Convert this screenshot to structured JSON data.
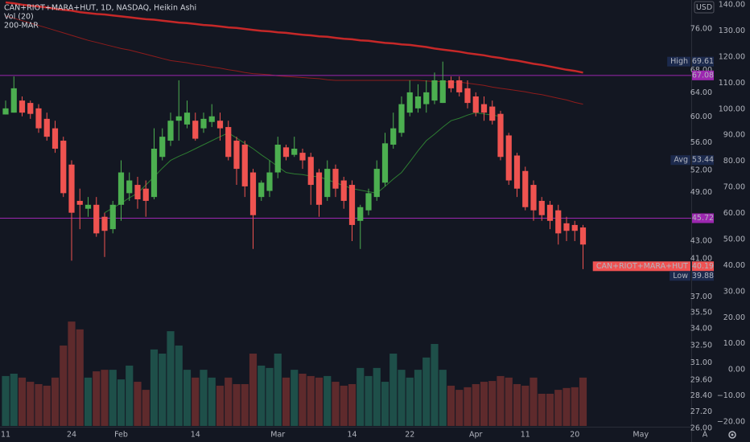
{
  "chart_data": {
    "type": "candlestick",
    "title": "CAN+RIOT+MARA+HUT, 1D, NASDAQ, Heikin Ashi",
    "currency": "USD",
    "buttons": [
      "A"
    ],
    "categories": [
      "11",
      null,
      null,
      null,
      null,
      null,
      null,
      null,
      "24",
      null,
      null,
      null,
      null,
      null,
      "Feb",
      null,
      null,
      null,
      null,
      null,
      null,
      null,
      null,
      "14",
      null,
      null,
      null,
      null,
      null,
      null,
      null,
      null,
      null,
      "Mar",
      null,
      null,
      null,
      null,
      null,
      null,
      null,
      null,
      "14",
      null,
      null,
      null,
      null,
      null,
      null,
      "22",
      null,
      null,
      null,
      null,
      null,
      null,
      null,
      "Apr",
      null,
      null,
      null,
      null,
      null,
      "11",
      null,
      null,
      null,
      null,
      null,
      "20",
      null,
      null,
      null,
      null,
      null,
      null,
      null,
      "May"
    ],
    "open": [
      60.4,
      60.7,
      62.7,
      62.3,
      61.4,
      59.7,
      58.2,
      56.3,
      52.8,
      47.9,
      46.9,
      47.4,
      45.9,
      44.4,
      47.4,
      48.9,
      50.0,
      49.5,
      48.4,
      53.9,
      56.3,
      59.4,
      58.8,
      59.4,
      58.2,
      59.2,
      59.4,
      58.4,
      56.3,
      55.7,
      51.7,
      48.4,
      49.2,
      51.7,
      55.3,
      54.2,
      54.5,
      53.9,
      51.7,
      48.4,
      52.2,
      50.6,
      50.0,
      45.4,
      46.7,
      48.4,
      50.3,
      55.7,
      57.5,
      60.7,
      61.4,
      62.1,
      62.7,
      62.3,
      66.2,
      66.2,
      64.8,
      63.4,
      62.1,
      61.7,
      60.5,
      57.1,
      54.1,
      51.9,
      50.0,
      47.9,
      47.4,
      46.7,
      45.1,
      44.9,
      44.6,
      null,
      null,
      null,
      null,
      null,
      null,
      null
    ],
    "high": [
      62.7,
      66.9,
      63.4,
      62.7,
      62.1,
      60.7,
      59.4,
      56.9,
      53.4,
      49.5,
      48.4,
      48.4,
      46.4,
      47.9,
      53.4,
      51.7,
      51.1,
      50.6,
      58.2,
      58.2,
      60.7,
      66.2,
      62.7,
      60.7,
      60.7,
      62.1,
      60.7,
      59.4,
      56.9,
      56.3,
      52.2,
      50.6,
      53.4,
      56.9,
      55.7,
      56.9,
      55.1,
      54.5,
      52.2,
      53.4,
      52.8,
      51.1,
      50.6,
      47.4,
      49.5,
      53.4,
      57.5,
      60.7,
      63.4,
      66.2,
      65.5,
      66.2,
      67.6,
      69.61,
      66.9,
      66.9,
      66.2,
      64.1,
      63.4,
      62.7,
      61.0,
      57.5,
      54.5,
      52.5,
      50.6,
      48.4,
      47.9,
      47.4,
      45.9,
      45.4,
      44.9,
      null,
      null,
      null,
      null,
      null,
      null,
      null
    ],
    "low": [
      60.4,
      60.7,
      60.1,
      59.7,
      57.5,
      56.3,
      54.5,
      48.4,
      40.8,
      44.4,
      45.9,
      43.5,
      41.2,
      43.9,
      45.4,
      47.9,
      46.9,
      45.9,
      48.1,
      53.4,
      55.5,
      56.3,
      58.2,
      56.3,
      57.5,
      58.4,
      56.3,
      53.4,
      50.0,
      48.4,
      42.1,
      47.9,
      48.4,
      50.9,
      53.4,
      53.9,
      52.2,
      47.4,
      45.9,
      47.9,
      48.4,
      46.9,
      43.0,
      42.1,
      46.1,
      47.9,
      49.8,
      55.1,
      56.9,
      60.1,
      60.7,
      60.7,
      62.1,
      62.3,
      64.1,
      63.4,
      61.4,
      60.1,
      59.4,
      58.8,
      53.4,
      50.0,
      48.4,
      46.7,
      45.4,
      45.4,
      44.4,
      42.6,
      43.0,
      43.0,
      39.88,
      null,
      null,
      null,
      null,
      null,
      null,
      null
    ],
    "close": [
      61.4,
      64.8,
      60.7,
      60.5,
      58.2,
      56.9,
      55.1,
      48.9,
      46.4,
      47.4,
      47.4,
      43.9,
      44.2,
      47.4,
      51.7,
      50.6,
      48.1,
      47.9,
      55.1,
      56.9,
      59.4,
      60.1,
      60.7,
      56.6,
      59.7,
      60.1,
      58.2,
      53.9,
      52.2,
      49.8,
      46.1,
      50.3,
      51.7,
      55.7,
      53.9,
      55.1,
      53.4,
      50.0,
      47.4,
      52.2,
      49.5,
      47.9,
      44.9,
      47.1,
      48.9,
      52.2,
      55.9,
      58.2,
      62.1,
      64.1,
      63.4,
      64.1,
      66.2,
      66.2,
      64.8,
      64.1,
      62.3,
      60.7,
      60.7,
      59.4,
      53.9,
      50.6,
      49.5,
      47.1,
      46.7,
      46.1,
      45.4,
      43.9,
      44.2,
      44.2,
      42.6,
      null,
      null,
      null,
      null,
      null,
      null,
      null
    ],
    "up_color": "#4caf50",
    "down_color": "#ef5350",
    "volume": {
      "name": "Vol (20)",
      "axis": "y2",
      "up_color": "#1e4f49",
      "down_color": "#5e2a2c",
      "values": [
        -2.4,
        -1.5,
        -3.0,
        -4.6,
        -5.5,
        -6.1,
        -3.0,
        9.3,
        18.5,
        15.5,
        -3.0,
        -0.6,
        0.0,
        0.0,
        -3.7,
        1.6,
        -4.6,
        -7.7,
        7.8,
        6.2,
        14.8,
        9.3,
        0.0,
        -3.0,
        0.0,
        -3.0,
        -6.1,
        -3.0,
        -5.5,
        -5.5,
        6.2,
        1.6,
        0.7,
        6.2,
        -3.0,
        0.0,
        -1.5,
        -2.4,
        -3.0,
        -2.4,
        -4.6,
        -6.1,
        -5.5,
        0.7,
        -2.4,
        0.7,
        -4.6,
        6.2,
        0.0,
        -3.0,
        0.0,
        4.7,
        9.9,
        0.0,
        -6.1,
        -7.7,
        -6.7,
        -5.5,
        -4.6,
        -4.3,
        -2.4,
        -3.0,
        -5.5,
        -6.1,
        -3.0,
        -9.2,
        -9.2,
        -7.7,
        -7.0,
        -6.7,
        -3.0,
        null,
        null,
        null,
        null,
        null,
        null,
        null
      ]
    },
    "moving_averages": {
      "name": "200-MAR",
      "series": [
        {
          "color": "#c62828",
          "values": [
            81.6,
            81.4,
            81.1,
            80.9,
            80.7,
            80.5,
            80.2,
            80.0,
            79.8,
            79.5,
            79.3,
            79.1,
            79.0,
            78.8,
            78.6,
            78.4,
            78.2,
            78.0,
            77.9,
            77.7,
            77.5,
            77.3,
            77.2,
            77.0,
            76.8,
            76.7,
            76.5,
            76.3,
            76.2,
            76.0,
            75.8,
            75.6,
            75.5,
            75.3,
            75.2,
            75.0,
            74.8,
            74.7,
            74.5,
            74.4,
            74.2,
            74.0,
            73.9,
            73.7,
            73.6,
            73.4,
            73.2,
            73.1,
            72.9,
            72.8,
            72.6,
            72.4,
            72.1,
            71.9,
            71.7,
            71.5,
            71.2,
            71.0,
            70.8,
            70.5,
            70.3,
            70.0,
            69.8,
            69.5,
            69.2,
            69.0,
            68.7,
            68.4,
            68.1,
            67.9,
            67.6,
            null,
            null,
            null,
            null,
            null,
            null,
            null
          ]
        },
        {
          "color": "#8e1c1c",
          "values": [
            78.7,
            78.2,
            77.7,
            77.2,
            76.7,
            76.2,
            75.7,
            75.2,
            74.7,
            74.2,
            73.7,
            73.3,
            72.9,
            72.5,
            72.1,
            71.8,
            71.4,
            71.0,
            70.6,
            70.2,
            69.8,
            69.6,
            69.4,
            69.1,
            68.9,
            68.6,
            68.4,
            68.1,
            67.9,
            67.6,
            67.4,
            67.3,
            67.2,
            67.0,
            66.9,
            66.8,
            66.7,
            66.6,
            66.5,
            66.3,
            66.2,
            66.2,
            66.2,
            66.2,
            66.2,
            66.2,
            66.2,
            66.2,
            66.2,
            66.2,
            66.2,
            66.1,
            66.0,
            66.0,
            65.9,
            65.9,
            65.7,
            65.5,
            65.3,
            65.0,
            64.8,
            64.6,
            64.4,
            64.2,
            63.9,
            63.7,
            63.4,
            63.1,
            62.8,
            62.4,
            62.1,
            null,
            null,
            null,
            null,
            null,
            null,
            null
          ]
        },
        {
          "color": "#2e7d32",
          "values": [
            null,
            null,
            null,
            null,
            null,
            null,
            null,
            null,
            null,
            null,
            null,
            null,
            46.4,
            47.0,
            47.6,
            48.3,
            48.9,
            50.0,
            51.1,
            52.3,
            53.4,
            54.0,
            54.5,
            55.1,
            55.7,
            56.3,
            56.9,
            57.5,
            56.7,
            55.9,
            55.1,
            54.2,
            53.4,
            52.5,
            51.7,
            51.5,
            51.4,
            51.2,
            51.1,
            50.7,
            50.3,
            49.9,
            49.5,
            49.3,
            49.1,
            48.9,
            49.8,
            50.8,
            51.7,
            53.2,
            54.8,
            56.3,
            57.3,
            58.4,
            59.4,
            59.8,
            60.3,
            60.7,
            60.5,
            60.3,
            60.1,
            null,
            null,
            null,
            null,
            null,
            null,
            null,
            null,
            null,
            null,
            null,
            null,
            null,
            null,
            null,
            null,
            null
          ]
        }
      ]
    },
    "log_scale": true,
    "ylim": [
      26.18,
      82.13
    ],
    "yticks": [
      {
        "value": 76,
        "label": "76.00"
      },
      {
        "value": 68,
        "label": "68.00"
      },
      {
        "value": 64,
        "label": "64.00"
      },
      {
        "value": 60,
        "label": "60.00"
      },
      {
        "value": 56,
        "label": "56.00"
      },
      {
        "value": 52,
        "label": "52.00"
      },
      {
        "value": 49,
        "label": "49.00"
      },
      {
        "value": 43,
        "label": "43.00"
      },
      {
        "value": 41,
        "label": "41.00"
      },
      {
        "value": 37,
        "label": "37.00"
      },
      {
        "value": 35.5,
        "label": "35.50"
      },
      {
        "value": 34,
        "label": "34.00"
      },
      {
        "value": 32.5,
        "label": "32.50"
      },
      {
        "value": 31,
        "label": "31.00"
      },
      {
        "value": 29.6,
        "label": "29.60"
      },
      {
        "value": 28.4,
        "label": "28.40"
      },
      {
        "value": 27.2,
        "label": "27.20"
      },
      {
        "value": 26,
        "label": "26.00"
      }
    ],
    "y2lim": [
      -21.54,
      141.85
    ],
    "y2ticks": [
      {
        "value": 140,
        "label": "140.00"
      },
      {
        "value": 130,
        "label": "130.00"
      },
      {
        "value": 120,
        "label": "120.00"
      },
      {
        "value": 110,
        "label": "110.00"
      },
      {
        "value": 100,
        "label": "100.00"
      },
      {
        "value": 90,
        "label": "90.00"
      },
      {
        "value": 80,
        "label": "80.00"
      },
      {
        "value": 70,
        "label": "70.00"
      },
      {
        "value": 60,
        "label": "60.00"
      },
      {
        "value": 50,
        "label": "50.00"
      },
      {
        "value": 40,
        "label": "40.00"
      },
      {
        "value": 30,
        "label": "30.00"
      },
      {
        "value": 20,
        "label": "20.00"
      },
      {
        "value": 10,
        "label": "10.00"
      },
      {
        "value": 0,
        "label": "0.00"
      },
      {
        "value": -10,
        "label": "−10.00"
      },
      {
        "value": -20,
        "label": "−20.00"
      }
    ],
    "hlines": [
      {
        "value": 67.08,
        "color": "#9c27b0"
      },
      {
        "value": 45.72,
        "color": "#9c27b0"
      }
    ],
    "markers": [
      {
        "label": "High",
        "value": 69.61
      },
      {
        "label": "Avg",
        "value": 53.44
      }
    ],
    "last": {
      "label": "CAN+RIOT+MARA+HUT",
      "value": 40.19,
      "color": "#f05252"
    },
    "low_marker": {
      "label": "Low",
      "value": 39.88
    }
  }
}
